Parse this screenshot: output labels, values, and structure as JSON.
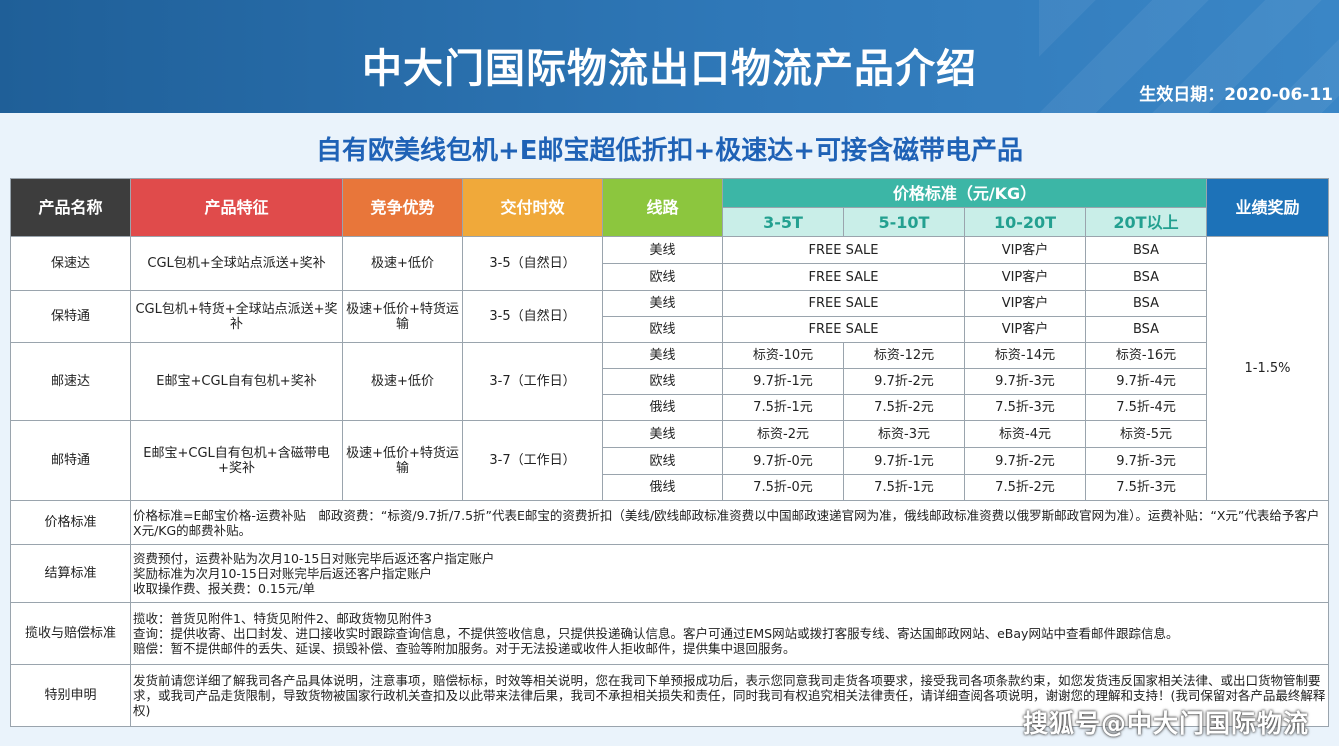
{
  "header": {
    "title": "中大门国际物流出口物流产品介绍",
    "effective_date": "生效日期：2020-06-11",
    "subtitle": "自有欧美线包机+E邮宝超低折扣+极速达+可接含磁带电产品"
  },
  "columns": {
    "name": "产品名称",
    "feature": "产品特征",
    "advantage": "竞争优势",
    "delivery": "交付时效",
    "route": "线路",
    "price": "价格标准（元/KG）",
    "tiers": [
      "3-5T",
      "5-10T",
      "10-20T",
      "20T以上"
    ],
    "bonus": "业绩奖励"
  },
  "bonus_value": "1-1.5%",
  "products": [
    {
      "name": "保速达",
      "feature": "CGL包机+全球站点派送+奖补",
      "advantage": "极速+低价",
      "delivery": "3-5（自然日）",
      "routes": [
        {
          "route": "美线",
          "free": "FREE SALE",
          "vip": "VIP客户",
          "bsa": "BSA"
        },
        {
          "route": "欧线",
          "free": "FREE SALE",
          "vip": "VIP客户",
          "bsa": "BSA"
        }
      ]
    },
    {
      "name": "保特通",
      "feature": "CGL包机+特货+全球站点派送+奖补",
      "advantage": "极速+低价+特货运输",
      "delivery": "3-5（自然日）",
      "routes": [
        {
          "route": "美线",
          "free": "FREE SALE",
          "vip": "VIP客户",
          "bsa": "BSA"
        },
        {
          "route": "欧线",
          "free": "FREE SALE",
          "vip": "VIP客户",
          "bsa": "BSA"
        }
      ]
    },
    {
      "name": "邮速达",
      "feature": "E邮宝+CGL自有包机+奖补",
      "advantage": "极速+低价",
      "delivery": "3-7（工作日）",
      "routes": [
        {
          "route": "美线",
          "prices": [
            "标资-10元",
            "标资-12元",
            "标资-14元",
            "标资-16元"
          ]
        },
        {
          "route": "欧线",
          "prices": [
            "9.7折-1元",
            "9.7折-2元",
            "9.7折-3元",
            "9.7折-4元"
          ]
        },
        {
          "route": "俄线",
          "prices": [
            "7.5折-1元",
            "7.5折-2元",
            "7.5折-3元",
            "7.5折-4元"
          ]
        }
      ]
    },
    {
      "name": "邮特通",
      "feature": "E邮宝+CGL自有包机+含磁带电+奖补",
      "advantage": "极速+低价+特货运输",
      "delivery": "3-7（工作日）",
      "routes": [
        {
          "route": "美线",
          "prices": [
            "标资-2元",
            "标资-3元",
            "标资-4元",
            "标资-5元"
          ]
        },
        {
          "route": "欧线",
          "prices": [
            "9.7折-0元",
            "9.7折-1元",
            "9.7折-2元",
            "9.7折-3元"
          ]
        },
        {
          "route": "俄线",
          "prices": [
            "7.5折-0元",
            "7.5折-1元",
            "7.5折-2元",
            "7.5折-3元"
          ]
        }
      ]
    }
  ],
  "notes": [
    {
      "label": "价格标准",
      "lines": [
        "价格标准=E邮宝价格-运费补贴　邮政资费：“标资/9.7折/7.5折”代表E邮宝的资费折扣（美线/欧线邮政标准资费以中国邮政速递官网为准，俄线邮政标准资费以俄罗斯邮政官网为准）。运费补贴：“X元”代表给予客户X元/KG的邮费补贴。"
      ]
    },
    {
      "label": "结算标准",
      "lines": [
        "资费预付，运费补贴为次月10-15日对账完毕后返还客户指定账户",
        "奖励标准为次月10-15日对账完毕后返还客户指定账户",
        "收取操作费、报关费：0.15元/单"
      ]
    },
    {
      "label": "揽收与赔偿标准",
      "lines": [
        "揽收：普货见附件1、特货见附件2、邮政货物见附件3",
        "查询：提供收寄、出口封发、进口接收实时跟踪查询信息，不提供签收信息，只提供投递确认信息。客户可通过EMS网站或拨打客服专线、寄达国邮政网站、eBay网站中查看邮件跟踪信息。",
        "赔偿：暂不提供邮件的丢失、延误、损毁补偿、查验等附加服务。对于无法投递或收件人拒收邮件，提供集中退回服务。"
      ]
    },
    {
      "label": "特别申明",
      "lines": [
        "发货前请您详细了解我司各产品具体说明，注意事项，赔偿标标，时效等相关说明，您在我司下单预报成功后，表示您同意我司走货各项要求，接受我司各项条款约束，如您发货违反国家相关法律、或出口货物管制要求，或我司产品走货限制，导致货物被国家行政机关查扣及以此带来法律后果，我司不承担相关损失和责任，同时我司有权追究相关法律责任，请详细查阅各项说明，谢谢您的理解和支持！(我司保留对各产品最终解释权)"
      ]
    }
  ],
  "watermark": "搜狐号@中大门国际物流"
}
